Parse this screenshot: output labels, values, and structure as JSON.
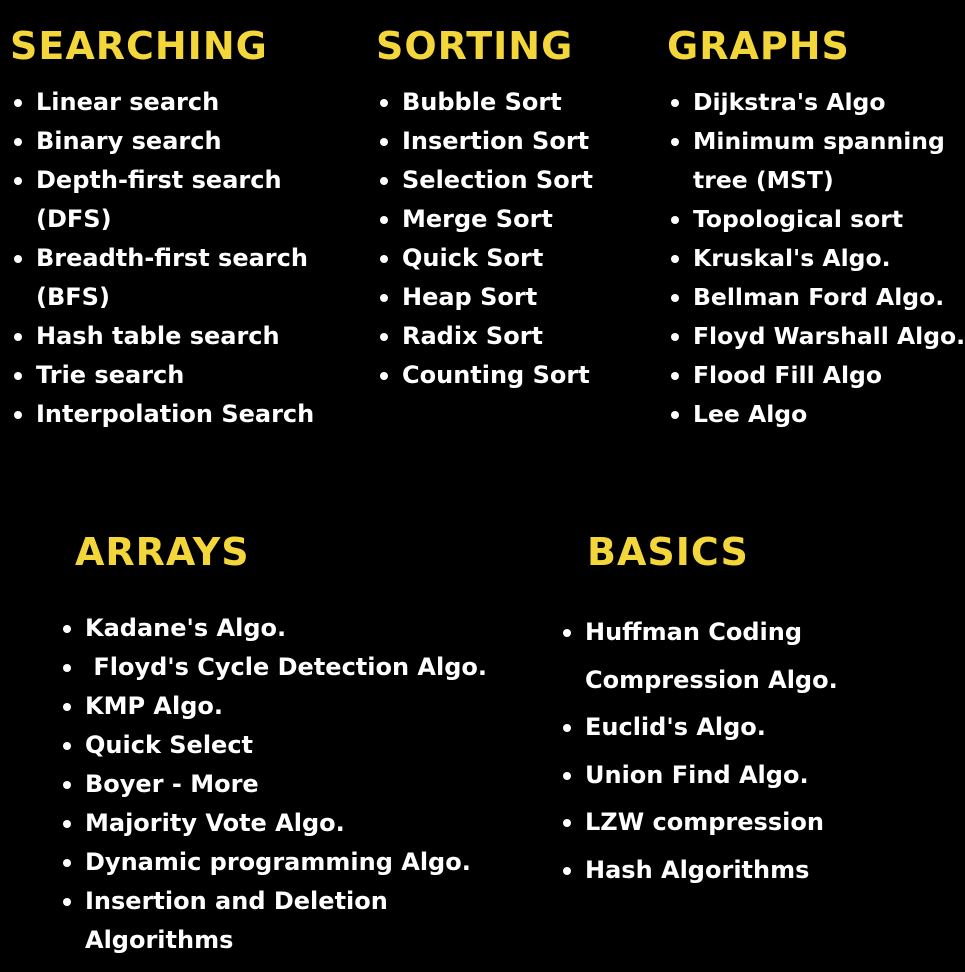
{
  "searching": {
    "title": "SEARCHING",
    "items": [
      "Linear search",
      "Binary search",
      [
        "Depth-first search",
        "(DFS)"
      ],
      [
        "Breadth-first search",
        "(BFS)"
      ],
      "Hash table search",
      "Trie search",
      "Interpolation Search"
    ]
  },
  "sorting": {
    "title": "SORTING",
    "items": [
      "Bubble Sort",
      "Insertion Sort",
      "Selection Sort",
      "Merge Sort",
      "Quick Sort",
      "Heap Sort",
      "Radix Sort",
      "Counting Sort"
    ]
  },
  "graphs": {
    "title": "GRAPHS",
    "items": [
      "Dijkstra's Algo",
      [
        "Minimum spanning",
        "tree (MST)"
      ],
      "Topological sort",
      "Kruskal's Algo.",
      "Bellman Ford Algo.",
      "Floyd Warshall Algo.",
      "Flood Fill Algo",
      "Lee Algo"
    ]
  },
  "arrays": {
    "title": "ARRAYS",
    "items": [
      "Kadane's Algo.",
      " Floyd's Cycle Detection Algo.",
      "KMP Algo.",
      "Quick Select",
      "Boyer - More",
      "Majority Vote Algo.",
      "Dynamic programming Algo.",
      [
        "Insertion and Deletion",
        "Algorithms"
      ]
    ]
  },
  "basics": {
    "title": "BASICS",
    "items": [
      [
        "Huffman Coding",
        "Compression Algo."
      ],
      "Euclid's Algo.",
      "Union Find Algo.",
      "LZW compression",
      "Hash Algorithms"
    ]
  },
  "colors": {
    "background": "#000000",
    "heading": "#f3d63a",
    "text": "#ffffff"
  }
}
